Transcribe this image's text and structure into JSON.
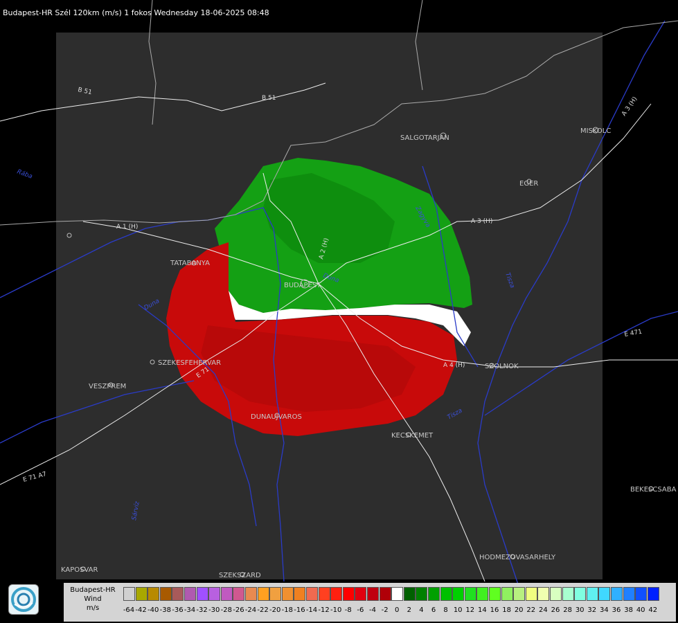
{
  "header": {
    "title": "Budapest-HR Szél 120km (m/s) 1 fokos Wednesday 18-06-2025 08:48"
  },
  "map": {
    "cities": [
      "SALGOTARJAN",
      "MISKOLC",
      "EGER",
      "TATABANYA",
      "BUDAPEST",
      "SZEKESFEHERVAR",
      "VESZPREM",
      "DUNAUJVAROS",
      "KECSKEMET",
      "SZOLNOK",
      "BEKESCSABA",
      "HODMEZOVASARHELY",
      "KAPOSVAR",
      "SZEKSZARD"
    ],
    "roads": [
      "B 51",
      "B 51",
      "A 1 (H)",
      "A 2 (H)",
      "A 3 (H)",
      "A 3 (H)",
      "A 4 (H)",
      "E 71",
      "E 71 A7",
      "E 471"
    ],
    "rivers": [
      "Duna",
      "Duna",
      "Tisza",
      "Tisza",
      "Sárvíz",
      "Zagyva",
      "Rába"
    ]
  },
  "legend": {
    "lines": [
      "Budapest-HR",
      "Wind",
      "m/s"
    ],
    "colors": [
      "#d0d0d0",
      "#a8a800",
      "#b88a00",
      "#a85a00",
      "#a85a5a",
      "#b05ab0",
      "#a050ff",
      "#b860e0",
      "#c05ac0",
      "#d05890",
      "#e88a50",
      "#ffa020",
      "#f0a040",
      "#f09030",
      "#f08020",
      "#f06a50",
      "#ff4020",
      "#ff2010",
      "#ff0000",
      "#e00010",
      "#c00010",
      "#b00008",
      "#ffffff",
      "#006000",
      "#008000",
      "#00a000",
      "#00c000",
      "#00d000",
      "#20e020",
      "#40f020",
      "#60ff20",
      "#90f060",
      "#b8f080",
      "#f0ff80",
      "#f0ffb0",
      "#d8ffc0",
      "#a8ffd0",
      "#80ffe0",
      "#60f0f0",
      "#40d8ff",
      "#30b0ff",
      "#2080ff",
      "#1050ff",
      "#0020ff"
    ],
    "ticks": [
      "-64",
      "-42",
      "-40",
      "-38",
      "-36",
      "-34",
      "-32",
      "-30",
      "-28",
      "-26",
      "-24",
      "-22",
      "-20",
      "-18",
      "-16",
      "-14",
      "-12",
      "-10",
      "-8",
      "-6",
      "-4",
      "-2",
      "0",
      "2",
      "4",
      "6",
      "8",
      "10",
      "12",
      "14",
      "16",
      "18",
      "20",
      "22",
      "24",
      "26",
      "28",
      "30",
      "32",
      "34",
      "36",
      "38",
      "40",
      "42"
    ]
  }
}
